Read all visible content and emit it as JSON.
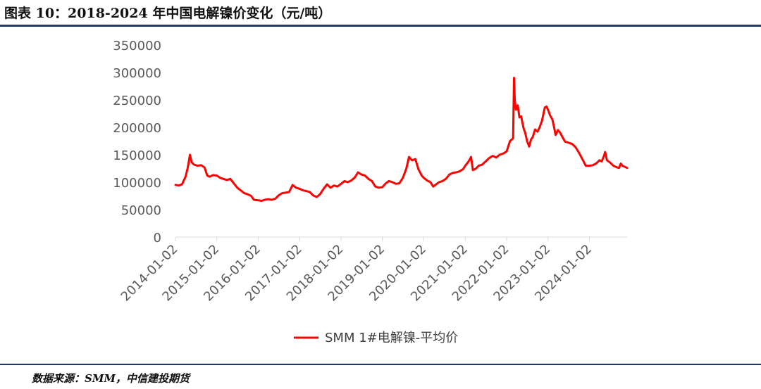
{
  "figure": {
    "title": "图表 10：2018-2024 年中国电解镍价变化（元/吨）",
    "source": "数据来源：SMM，中信建投期货"
  },
  "colors": {
    "series": "#ff0000",
    "rule": "#1f3864",
    "axis": "#d9d9d9"
  },
  "chart_data": {
    "type": "line",
    "title": "",
    "xlabel": "",
    "ylabel": "",
    "ylim": [
      0,
      350000
    ],
    "yticks": [
      0,
      50000,
      100000,
      150000,
      200000,
      250000,
      300000,
      350000
    ],
    "xlim": [
      "2014-01-02",
      "2024-11-30"
    ],
    "xticks": [
      "2014-01-02",
      "2015-01-02",
      "2016-01-02",
      "2017-01-02",
      "2018-01-02",
      "2019-01-02",
      "2020-01-02",
      "2021-01-02",
      "2022-01-02",
      "2023-01-02",
      "2024-01-02"
    ],
    "grid": false,
    "legend": "bottom",
    "series": [
      {
        "name": "SMM 1#电解镍-平均价",
        "points": [
          [
            "2014-01-02",
            95000
          ],
          [
            "2014-02-01",
            94000
          ],
          [
            "2014-03-01",
            96000
          ],
          [
            "2014-04-01",
            110000
          ],
          [
            "2014-04-20",
            126000
          ],
          [
            "2014-05-10",
            150000
          ],
          [
            "2014-05-25",
            136000
          ],
          [
            "2014-06-15",
            132000
          ],
          [
            "2014-07-15",
            130000
          ],
          [
            "2014-08-15",
            131000
          ],
          [
            "2014-09-15",
            127000
          ],
          [
            "2014-10-10",
            112000
          ],
          [
            "2014-11-01",
            110000
          ],
          [
            "2014-12-01",
            113000
          ],
          [
            "2015-01-02",
            112000
          ],
          [
            "2015-02-01",
            108000
          ],
          [
            "2015-03-01",
            106000
          ],
          [
            "2015-04-01",
            104000
          ],
          [
            "2015-05-01",
            106000
          ],
          [
            "2015-06-01",
            98000
          ],
          [
            "2015-07-01",
            90000
          ],
          [
            "2015-08-01",
            85000
          ],
          [
            "2015-09-01",
            80000
          ],
          [
            "2015-10-01",
            78000
          ],
          [
            "2015-11-01",
            75000
          ],
          [
            "2015-11-25",
            68000
          ],
          [
            "2016-01-02",
            67000
          ],
          [
            "2016-02-01",
            66000
          ],
          [
            "2016-03-01",
            68000
          ],
          [
            "2016-04-01",
            69000
          ],
          [
            "2016-05-01",
            68000
          ],
          [
            "2016-06-01",
            70000
          ],
          [
            "2016-07-01",
            76000
          ],
          [
            "2016-08-01",
            80000
          ],
          [
            "2016-09-01",
            81000
          ],
          [
            "2016-10-01",
            82000
          ],
          [
            "2016-11-01",
            95000
          ],
          [
            "2016-12-01",
            90000
          ],
          [
            "2017-01-02",
            88000
          ],
          [
            "2017-02-01",
            85000
          ],
          [
            "2017-03-01",
            84000
          ],
          [
            "2017-04-01",
            82000
          ],
          [
            "2017-05-01",
            76000
          ],
          [
            "2017-06-01",
            73000
          ],
          [
            "2017-07-01",
            78000
          ],
          [
            "2017-08-01",
            88000
          ],
          [
            "2017-09-01",
            96000
          ],
          [
            "2017-10-01",
            90000
          ],
          [
            "2017-11-01",
            94000
          ],
          [
            "2017-12-01",
            92000
          ],
          [
            "2018-01-02",
            97000
          ],
          [
            "2018-02-01",
            102000
          ],
          [
            "2018-03-01",
            100000
          ],
          [
            "2018-04-01",
            103000
          ],
          [
            "2018-05-01",
            108000
          ],
          [
            "2018-06-01",
            118000
          ],
          [
            "2018-07-01",
            114000
          ],
          [
            "2018-08-01",
            112000
          ],
          [
            "2018-09-01",
            106000
          ],
          [
            "2018-10-01",
            102000
          ],
          [
            "2018-11-01",
            92000
          ],
          [
            "2018-12-01",
            90000
          ],
          [
            "2019-01-02",
            91000
          ],
          [
            "2019-02-01",
            98000
          ],
          [
            "2019-03-01",
            102000
          ],
          [
            "2019-04-01",
            100000
          ],
          [
            "2019-05-01",
            97000
          ],
          [
            "2019-06-01",
            98000
          ],
          [
            "2019-07-01",
            108000
          ],
          [
            "2019-08-01",
            125000
          ],
          [
            "2019-08-25",
            146000
          ],
          [
            "2019-09-20",
            140000
          ],
          [
            "2019-10-20",
            142000
          ],
          [
            "2019-11-15",
            124000
          ],
          [
            "2019-12-15",
            112000
          ],
          [
            "2020-01-02",
            108000
          ],
          [
            "2020-02-01",
            103000
          ],
          [
            "2020-03-01",
            100000
          ],
          [
            "2020-03-25",
            92000
          ],
          [
            "2020-04-20",
            96000
          ],
          [
            "2020-05-15",
            100000
          ],
          [
            "2020-06-15",
            102000
          ],
          [
            "2020-07-15",
            106000
          ],
          [
            "2020-08-15",
            114000
          ],
          [
            "2020-09-15",
            117000
          ],
          [
            "2020-10-15",
            118000
          ],
          [
            "2020-11-15",
            120000
          ],
          [
            "2020-12-15",
            124000
          ],
          [
            "2021-01-02",
            130000
          ],
          [
            "2021-02-01",
            138000
          ],
          [
            "2021-02-22",
            146000
          ],
          [
            "2021-03-10",
            122000
          ],
          [
            "2021-04-01",
            124000
          ],
          [
            "2021-05-01",
            130000
          ],
          [
            "2021-06-01",
            132000
          ],
          [
            "2021-07-01",
            138000
          ],
          [
            "2021-08-01",
            144000
          ],
          [
            "2021-09-01",
            148000
          ],
          [
            "2021-10-01",
            145000
          ],
          [
            "2021-11-01",
            150000
          ],
          [
            "2021-12-01",
            152000
          ],
          [
            "2022-01-02",
            156000
          ],
          [
            "2022-02-01",
            175000
          ],
          [
            "2022-02-28",
            180000
          ],
          [
            "2022-03-08",
            290000
          ],
          [
            "2022-03-15",
            250000
          ],
          [
            "2022-03-25",
            232000
          ],
          [
            "2022-04-10",
            240000
          ],
          [
            "2022-04-25",
            218000
          ],
          [
            "2022-05-10",
            220000
          ],
          [
            "2022-06-01",
            198000
          ],
          [
            "2022-06-15",
            190000
          ],
          [
            "2022-07-01",
            175000
          ],
          [
            "2022-07-20",
            165000
          ],
          [
            "2022-08-05",
            178000
          ],
          [
            "2022-08-20",
            182000
          ],
          [
            "2022-09-10",
            196000
          ],
          [
            "2022-10-01",
            192000
          ],
          [
            "2022-10-20",
            200000
          ],
          [
            "2022-11-10",
            212000
          ],
          [
            "2022-12-05",
            236000
          ],
          [
            "2022-12-20",
            238000
          ],
          [
            "2023-01-02",
            232000
          ],
          [
            "2023-01-20",
            222000
          ],
          [
            "2023-02-10",
            214000
          ],
          [
            "2023-02-25",
            200000
          ],
          [
            "2023-03-10",
            186000
          ],
          [
            "2023-04-01",
            195000
          ],
          [
            "2023-04-20",
            190000
          ],
          [
            "2023-05-10",
            182000
          ],
          [
            "2023-06-01",
            174000
          ],
          [
            "2023-07-01",
            172000
          ],
          [
            "2023-08-01",
            170000
          ],
          [
            "2023-09-01",
            164000
          ],
          [
            "2023-10-01",
            154000
          ],
          [
            "2023-11-01",
            142000
          ],
          [
            "2023-12-01",
            130000
          ],
          [
            "2024-01-02",
            130000
          ],
          [
            "2024-02-01",
            131000
          ],
          [
            "2024-03-01",
            134000
          ],
          [
            "2024-04-01",
            140000
          ],
          [
            "2024-04-20",
            138000
          ],
          [
            "2024-05-10",
            148000
          ],
          [
            "2024-05-20",
            155000
          ],
          [
            "2024-06-05",
            140000
          ],
          [
            "2024-07-01",
            136000
          ],
          [
            "2024-08-01",
            130000
          ],
          [
            "2024-09-01",
            127000
          ],
          [
            "2024-09-20",
            126000
          ],
          [
            "2024-10-05",
            134000
          ],
          [
            "2024-10-20",
            130000
          ],
          [
            "2024-11-10",
            128000
          ],
          [
            "2024-11-30",
            126000
          ]
        ]
      }
    ]
  }
}
